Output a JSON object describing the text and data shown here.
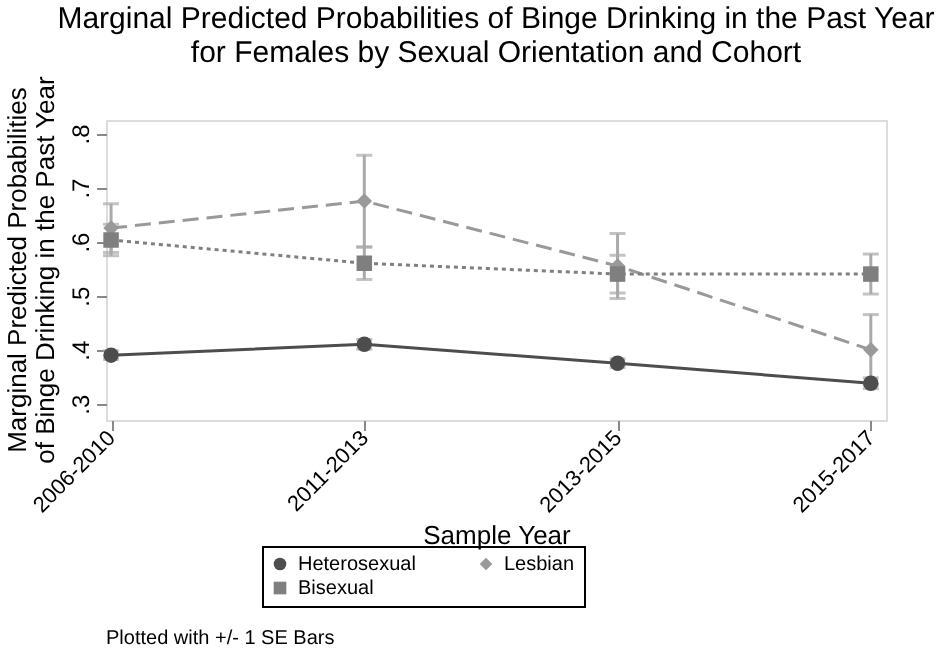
{
  "chart_data": {
    "type": "line",
    "title": "Marginal Predicted Probabilities of Binge Drinking in the Past Year\nfor Females by Sexual Orientation and Cohort",
    "xlabel": "Sample Year",
    "ylabel": "Marginal Predicted Probabilities\nof Binge Drinking in the Past Year",
    "categories": [
      "2006-2010",
      "2011-2013",
      "2013-2015",
      "2015-2017"
    ],
    "series": [
      {
        "name": "Heterosexual",
        "color": "#4d4d4d",
        "marker": "circle",
        "line_style": "solid",
        "values": [
          0.39,
          0.41,
          0.375,
          0.338
        ],
        "errors": [
          0.008,
          0.009,
          0.008,
          0.01
        ]
      },
      {
        "name": "Lesbian",
        "color": "#999999",
        "marker": "diamond",
        "line_style": "dashed",
        "values": [
          0.625,
          0.675,
          0.555,
          0.4
        ],
        "errors": [
          0.045,
          0.085,
          0.06,
          0.065
        ]
      },
      {
        "name": "Bisexual",
        "color": "#7f7f7f",
        "marker": "square",
        "line_style": "dotted",
        "values": [
          0.603,
          0.56,
          0.54,
          0.54
        ],
        "errors": [
          0.029,
          0.03,
          0.035,
          0.037
        ]
      }
    ],
    "ylim": [
      0.27,
      0.825
    ],
    "yticks": [
      {
        "value": 0.3,
        "label": ".3"
      },
      {
        "value": 0.4,
        "label": ".4"
      },
      {
        "value": 0.5,
        "label": ".5"
      },
      {
        "value": 0.6,
        "label": ".6"
      },
      {
        "value": 0.7,
        "label": ".7"
      },
      {
        "value": 0.8,
        "label": ".8"
      }
    ],
    "grid": false,
    "legend": "bottom",
    "annotations": [
      "Plotted with +/- 1 SE Bars"
    ]
  }
}
